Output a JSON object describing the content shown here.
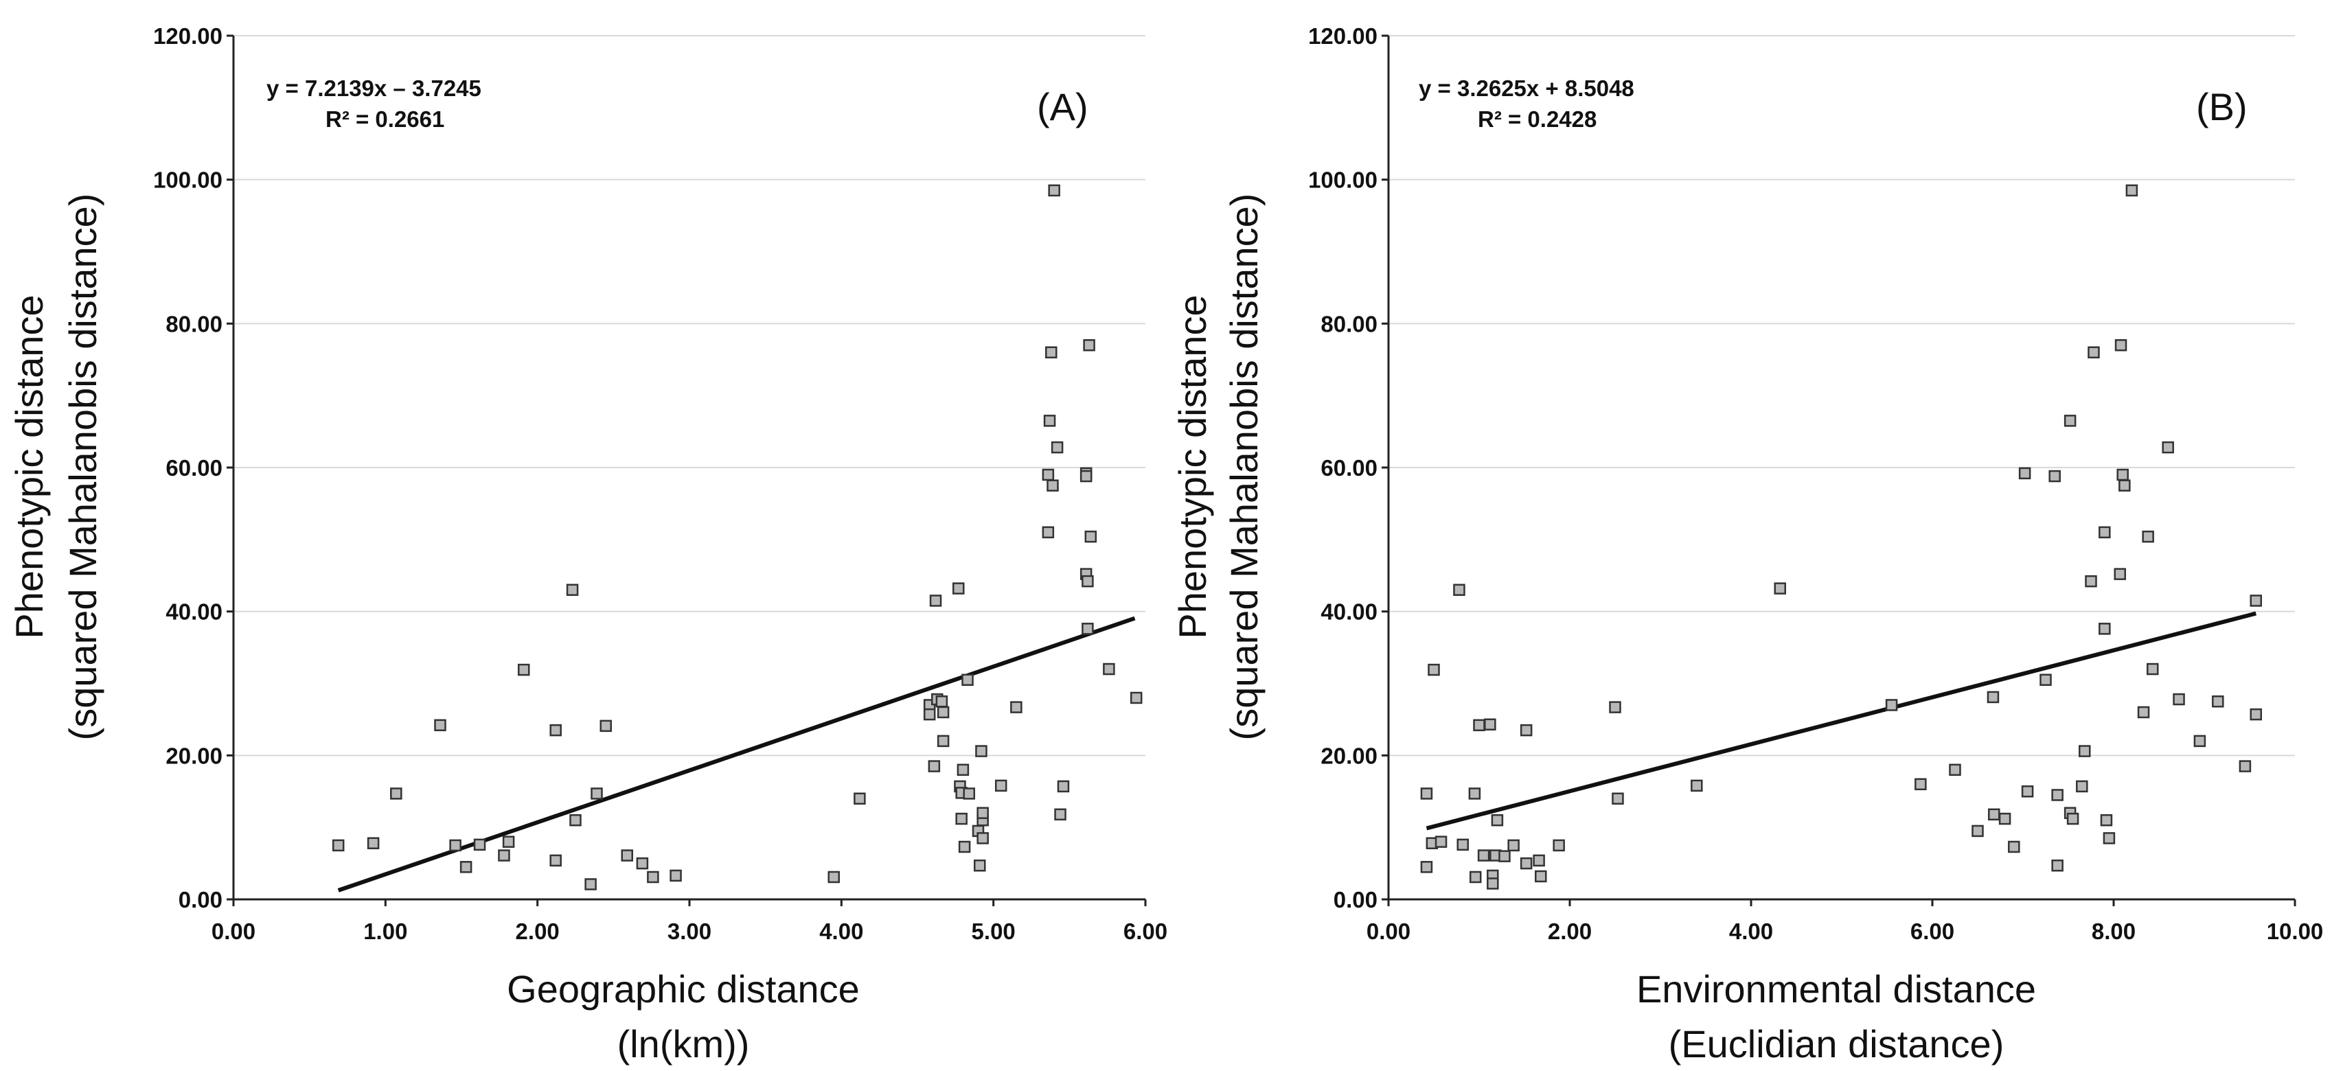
{
  "chart_data": [
    {
      "type": "scatter",
      "panel_label": "(A)",
      "equation": "y = 7.2139x – 3.7245",
      "r_squared": "R² = 0.2661",
      "xlabel_line1": "Geographic distance",
      "xlabel_line2": "(ln(km))",
      "ylabel_line1": "Phenotypic distance",
      "ylabel_line2": "(squared Mahalanobis distance)",
      "xlim": [
        0,
        6
      ],
      "ylim": [
        0,
        120
      ],
      "x_ticks": [
        "0.00",
        "1.00",
        "2.00",
        "3.00",
        "4.00",
        "5.00",
        "6.00"
      ],
      "y_ticks": [
        "0.00",
        "20.00",
        "40.00",
        "60.00",
        "80.00",
        "100.00",
        "120.00"
      ],
      "trendline": {
        "slope": 7.2139,
        "intercept": -3.7245,
        "x_range": [
          0.69,
          5.93
        ]
      },
      "points": [
        [
          0.69,
          7.5
        ],
        [
          0.92,
          7.8
        ],
        [
          1.07,
          14.7
        ],
        [
          1.36,
          24.2
        ],
        [
          1.46,
          7.5
        ],
        [
          1.53,
          4.5
        ],
        [
          1.62,
          7.6
        ],
        [
          1.78,
          6.1
        ],
        [
          1.81,
          8.0
        ],
        [
          1.91,
          31.9
        ],
        [
          2.12,
          23.5
        ],
        [
          2.12,
          5.4
        ],
        [
          2.23,
          43.0
        ],
        [
          2.25,
          11.0
        ],
        [
          2.35,
          2.1
        ],
        [
          2.39,
          14.7
        ],
        [
          2.45,
          24.1
        ],
        [
          2.59,
          6.1
        ],
        [
          2.69,
          5.0
        ],
        [
          2.76,
          3.1
        ],
        [
          2.91,
          3.3
        ],
        [
          3.95,
          3.1
        ],
        [
          4.12,
          14.0
        ],
        [
          4.58,
          27.0
        ],
        [
          4.58,
          25.7
        ],
        [
          4.61,
          18.5
        ],
        [
          4.62,
          41.5
        ],
        [
          4.63,
          27.8
        ],
        [
          4.66,
          27.5
        ],
        [
          4.67,
          26.0
        ],
        [
          4.67,
          22.0
        ],
        [
          4.77,
          43.2
        ],
        [
          4.78,
          15.7
        ],
        [
          4.79,
          11.2
        ],
        [
          4.79,
          14.8
        ],
        [
          4.8,
          18.0
        ],
        [
          4.81,
          7.3
        ],
        [
          4.83,
          30.5
        ],
        [
          4.84,
          14.7
        ],
        [
          4.9,
          9.5
        ],
        [
          4.91,
          4.7
        ],
        [
          4.92,
          20.6
        ],
        [
          4.93,
          11.0
        ],
        [
          4.93,
          12.0
        ],
        [
          4.93,
          8.5
        ],
        [
          5.05,
          15.8
        ],
        [
          5.15,
          26.7
        ],
        [
          5.36,
          51.0
        ],
        [
          5.36,
          59.0
        ],
        [
          5.37,
          66.5
        ],
        [
          5.38,
          76.0
        ],
        [
          5.39,
          57.5
        ],
        [
          5.4,
          98.5
        ],
        [
          5.42,
          62.8
        ],
        [
          5.44,
          11.8
        ],
        [
          5.46,
          15.7
        ],
        [
          5.61,
          45.2
        ],
        [
          5.61,
          59.2
        ],
        [
          5.61,
          58.8
        ],
        [
          5.62,
          44.2
        ],
        [
          5.62,
          37.6
        ],
        [
          5.63,
          77.0
        ],
        [
          5.64,
          50.4
        ],
        [
          5.76,
          32.0
        ],
        [
          5.94,
          28.0
        ]
      ]
    },
    {
      "type": "scatter",
      "panel_label": "(B)",
      "equation": "y = 3.2625x + 8.5048",
      "r_squared": "R² = 0.2428",
      "xlabel_line1": "Environmental distance",
      "xlabel_line2": "(Euclidian distance)",
      "ylabel_line1": "Phenotypic distance",
      "ylabel_line2": "(squared Mahalanobis distance)",
      "xlim": [
        0,
        10
      ],
      "ylim": [
        0,
        120
      ],
      "x_ticks": [
        "0.00",
        "2.00",
        "4.00",
        "6.00",
        "8.00",
        "10.00"
      ],
      "y_ticks": [
        "0.00",
        "20.00",
        "40.00",
        "60.00",
        "80.00",
        "100.00",
        "120.00"
      ],
      "trendline": {
        "slope": 3.2625,
        "intercept": 8.5048,
        "x_range": [
          0.42,
          9.57
        ]
      },
      "points": [
        [
          0.42,
          14.7
        ],
        [
          0.42,
          4.5
        ],
        [
          0.48,
          7.8
        ],
        [
          0.5,
          31.9
        ],
        [
          0.58,
          8.0
        ],
        [
          0.78,
          43.0
        ],
        [
          0.82,
          7.6
        ],
        [
          0.95,
          14.7
        ],
        [
          0.96,
          3.1
        ],
        [
          1.0,
          24.2
        ],
        [
          1.05,
          6.1
        ],
        [
          1.12,
          24.3
        ],
        [
          1.15,
          3.3
        ],
        [
          1.15,
          2.2
        ],
        [
          1.18,
          6.1
        ],
        [
          1.2,
          11.0
        ],
        [
          1.28,
          6.0
        ],
        [
          1.38,
          7.5
        ],
        [
          1.52,
          23.5
        ],
        [
          1.52,
          5.0
        ],
        [
          1.66,
          5.4
        ],
        [
          1.68,
          3.2
        ],
        [
          1.88,
          7.5
        ],
        [
          2.5,
          26.7
        ],
        [
          2.53,
          14.0
        ],
        [
          3.4,
          15.8
        ],
        [
          4.32,
          43.2
        ],
        [
          5.55,
          27.0
        ],
        [
          5.87,
          16.0
        ],
        [
          6.25,
          18.0
        ],
        [
          6.5,
          9.5
        ],
        [
          6.67,
          28.1
        ],
        [
          6.68,
          11.8
        ],
        [
          6.8,
          11.2
        ],
        [
          6.9,
          7.3
        ],
        [
          7.02,
          59.2
        ],
        [
          7.05,
          15.0
        ],
        [
          7.25,
          30.5
        ],
        [
          7.35,
          58.8
        ],
        [
          7.38,
          14.5
        ],
        [
          7.38,
          4.7
        ],
        [
          7.52,
          12.0
        ],
        [
          7.52,
          66.5
        ],
        [
          7.55,
          11.2
        ],
        [
          7.65,
          15.7
        ],
        [
          7.68,
          20.6
        ],
        [
          7.75,
          44.2
        ],
        [
          7.78,
          76.0
        ],
        [
          7.9,
          51.0
        ],
        [
          7.9,
          37.6
        ],
        [
          7.92,
          11.0
        ],
        [
          7.95,
          8.5
        ],
        [
          8.07,
          45.2
        ],
        [
          8.08,
          77.0
        ],
        [
          8.1,
          59.0
        ],
        [
          8.12,
          57.5
        ],
        [
          8.2,
          98.5
        ],
        [
          8.33,
          26.0
        ],
        [
          8.38,
          50.4
        ],
        [
          8.43,
          32.0
        ],
        [
          8.6,
          62.8
        ],
        [
          8.72,
          27.8
        ],
        [
          8.95,
          22.0
        ],
        [
          9.15,
          27.5
        ],
        [
          9.45,
          18.5
        ],
        [
          9.57,
          41.5
        ],
        [
          9.57,
          25.7
        ]
      ]
    }
  ]
}
